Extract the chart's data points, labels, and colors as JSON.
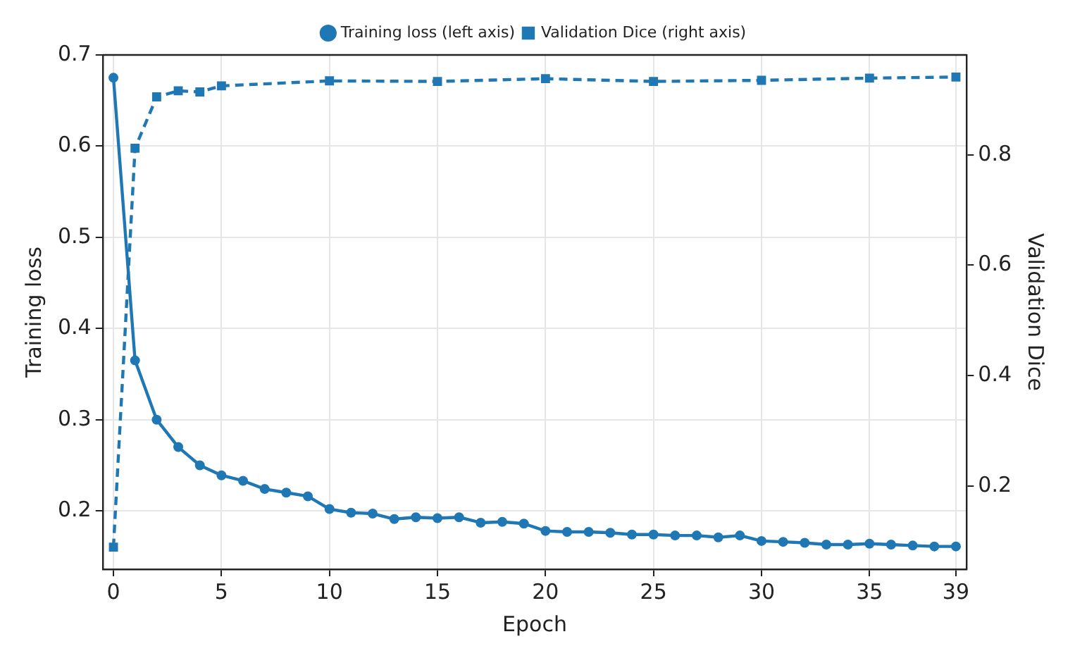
{
  "chart_data": {
    "type": "line",
    "xlabel": "Epoch",
    "ylabel": "Training loss",
    "y2label": "Validation Dice",
    "xlim": [
      -0.5,
      39.5
    ],
    "xticks": [
      0,
      5,
      10,
      15,
      20,
      25,
      30,
      35,
      39
    ],
    "ylim": [
      0.136,
      0.7
    ],
    "yticks": [
      0.2,
      0.3,
      0.4,
      0.5,
      0.6,
      0.7
    ],
    "y2lim": [
      0.049,
      0.981
    ],
    "y2ticks": [
      0.2,
      0.4,
      0.6,
      0.8
    ],
    "grid": true,
    "legend": "top",
    "series": [
      {
        "name": "Training loss (left axis)",
        "color": "#1f77b4",
        "marker": "circle",
        "line_style": "solid",
        "x": [
          0,
          1,
          2,
          3,
          4,
          5,
          6,
          7,
          8,
          9,
          10,
          11,
          12,
          13,
          14,
          15,
          16,
          17,
          18,
          19,
          20,
          21,
          22,
          23,
          24,
          25,
          26,
          27,
          28,
          29,
          30,
          31,
          32,
          33,
          34,
          35,
          36,
          37,
          38,
          39
        ],
        "values": [
          0.675,
          0.365,
          0.3,
          0.27,
          0.25,
          0.239,
          0.233,
          0.224,
          0.22,
          0.216,
          0.202,
          0.198,
          0.197,
          0.191,
          0.193,
          0.192,
          0.193,
          0.187,
          0.188,
          0.186,
          0.178,
          0.177,
          0.177,
          0.176,
          0.174,
          0.174,
          0.173,
          0.173,
          0.171,
          0.173,
          0.167,
          0.166,
          0.165,
          0.163,
          0.163,
          0.164,
          0.163,
          0.162,
          0.161,
          0.161
        ]
      },
      {
        "name": "Validation Dice (right axis)",
        "color": "#1f77b4",
        "marker": "square",
        "line_style": "dashed",
        "axis": "y2",
        "x": [
          0,
          1,
          2,
          3,
          4,
          5,
          10,
          15,
          20,
          25,
          30,
          35,
          39
        ],
        "values": [
          0.089,
          0.812,
          0.905,
          0.916,
          0.914,
          0.925,
          0.934,
          0.933,
          0.938,
          0.933,
          0.935,
          0.939,
          0.941
        ]
      }
    ]
  }
}
